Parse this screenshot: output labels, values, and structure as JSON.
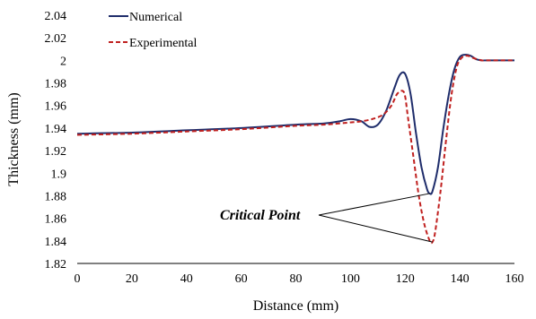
{
  "chart_data": {
    "type": "line",
    "xlabel": "Distance (mm)",
    "ylabel": "Thickness (mm)",
    "xlim": [
      0,
      160
    ],
    "ylim": [
      1.82,
      2.04
    ],
    "x_ticks": [
      0,
      20,
      40,
      60,
      80,
      100,
      120,
      140,
      160
    ],
    "y_ticks": [
      1.82,
      1.84,
      1.86,
      1.88,
      1.9,
      1.92,
      1.94,
      1.96,
      1.98,
      2,
      2.02,
      2.04
    ],
    "y_tick_labels": [
      "1.82",
      "1.84",
      "1.86",
      "1.88",
      "1.9",
      "1.92",
      "1.94",
      "1.96",
      "1.98",
      "2",
      "2.02",
      "2.04"
    ],
    "grid": false,
    "legend_position": "top-left",
    "series": [
      {
        "name": "Numerical",
        "color": "#1f2d6b",
        "dash": "solid",
        "points": [
          [
            0,
            1.935
          ],
          [
            20,
            1.936
          ],
          [
            40,
            1.938
          ],
          [
            60,
            1.94
          ],
          [
            80,
            1.943
          ],
          [
            90,
            1.944
          ],
          [
            96,
            1.946
          ],
          [
            100,
            1.948
          ],
          [
            104,
            1.946
          ],
          [
            107,
            1.941
          ],
          [
            110,
            1.943
          ],
          [
            113,
            1.955
          ],
          [
            116,
            1.975
          ],
          [
            118,
            1.987
          ],
          [
            120,
            1.988
          ],
          [
            122,
            1.97
          ],
          [
            124,
            1.935
          ],
          [
            126,
            1.905
          ],
          [
            128,
            1.886
          ],
          [
            129,
            1.882
          ],
          [
            130,
            1.884
          ],
          [
            132,
            1.905
          ],
          [
            134,
            1.94
          ],
          [
            136,
            1.97
          ],
          [
            138,
            1.992
          ],
          [
            140,
            2.003
          ],
          [
            142,
            2.005
          ],
          [
            144,
            2.004
          ],
          [
            146,
            2.001
          ],
          [
            148,
            2.0
          ],
          [
            150,
            2.0
          ],
          [
            160,
            2.0
          ]
        ]
      },
      {
        "name": "Experimental",
        "color": "#c0201f",
        "dash": "dashed",
        "points": [
          [
            0,
            1.934
          ],
          [
            20,
            1.935
          ],
          [
            40,
            1.937
          ],
          [
            60,
            1.939
          ],
          [
            80,
            1.942
          ],
          [
            90,
            1.943
          ],
          [
            100,
            1.945
          ],
          [
            104,
            1.946
          ],
          [
            108,
            1.948
          ],
          [
            112,
            1.952
          ],
          [
            115,
            1.96
          ],
          [
            117,
            1.97
          ],
          [
            119,
            1.973
          ],
          [
            120,
            1.968
          ],
          [
            121,
            1.95
          ],
          [
            123,
            1.915
          ],
          [
            125,
            1.88
          ],
          [
            127,
            1.855
          ],
          [
            129,
            1.84
          ],
          [
            130,
            1.839
          ],
          [
            131,
            1.848
          ],
          [
            133,
            1.885
          ],
          [
            135,
            1.93
          ],
          [
            137,
            1.97
          ],
          [
            139,
            1.995
          ],
          [
            141,
            2.003
          ],
          [
            143,
            2.004
          ],
          [
            145,
            2.002
          ],
          [
            148,
            2.0
          ],
          [
            150,
            2.0
          ],
          [
            160,
            2.0
          ]
        ]
      }
    ],
    "annotations": [
      {
        "text": "Critical Point",
        "targets": [
          [
            129,
            1.882
          ],
          [
            130,
            1.839
          ]
        ]
      }
    ]
  }
}
